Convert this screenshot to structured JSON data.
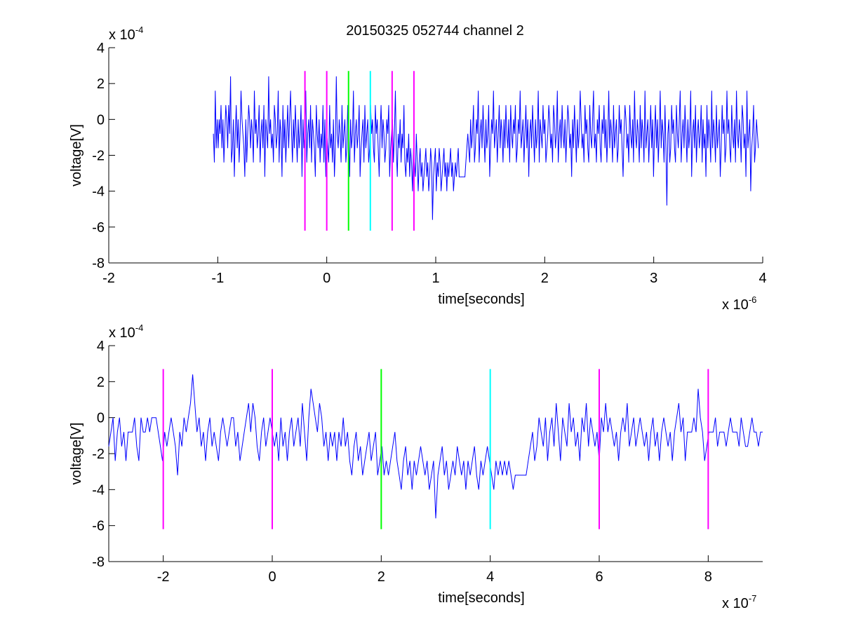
{
  "title": "20150325 052744 channel 2",
  "colors": {
    "signal": "#0000ff",
    "magenta": "#ff00ff",
    "green": "#00ff00",
    "cyan": "#00ffff",
    "axes": "#000000",
    "background": "#ffffff"
  },
  "chart_data": [
    {
      "type": "line",
      "name": "top",
      "xlabel": "time[seconds]",
      "ylabel": "voltage[V]",
      "x_multiplier": {
        "text": "x 10",
        "exp": "-6"
      },
      "y_multiplier": {
        "text": "x 10",
        "exp": "-4"
      },
      "xlim": [
        -2,
        4
      ],
      "ylim": [
        -8,
        4
      ],
      "xticks": [
        -2,
        -1,
        0,
        1,
        2,
        3,
        4
      ],
      "xtick_labels": [
        "-2",
        "-1",
        "0",
        "1",
        "2",
        "3",
        "4"
      ],
      "yticks": [
        -8,
        -6,
        -4,
        -2,
        0,
        2,
        4
      ],
      "ytick_labels": [
        "-8",
        "-6",
        "-4",
        "-2",
        "0",
        "2",
        "4"
      ],
      "grid": false,
      "signal": {
        "x_start": -1.04,
        "x_end": 3.96,
        "values": [
          -0.8,
          -2.4,
          1.6,
          -1.6,
          0,
          -1.6,
          0,
          -0.8,
          0.8,
          -1.6,
          0,
          -2.4,
          -0.8,
          0.8,
          0,
          -1.6,
          0.8,
          -0.8,
          2.4,
          -2.4,
          -1.6,
          0,
          -3.2,
          -0.8,
          0.8,
          -1.6,
          0,
          -2.4,
          -0.8,
          1.6,
          0,
          -0.8,
          -1.6,
          -3.2,
          0,
          -2.4,
          -0.8,
          0.8,
          0,
          -1.6,
          0,
          -0.8,
          -2.4,
          1.6,
          -0.8,
          0,
          -1.6,
          -0.8,
          0.8,
          -2.4,
          -0.8,
          0,
          -1.6,
          0.8,
          -3.2,
          0,
          -0.8,
          -1.6,
          2.4,
          -0.8,
          0,
          -1.6,
          -0.8,
          -2.4,
          0.8,
          0,
          -1.6,
          -0.8,
          1.6,
          -2.4,
          0,
          -0.8,
          -3.2,
          0.8,
          -1.6,
          0,
          -2.4,
          -0.8,
          0.8,
          -1.6,
          0,
          1.6,
          -0.8,
          -2.4,
          0,
          -1.6,
          0.8,
          -0.8,
          -2.4,
          0,
          -1.6,
          -0.8,
          0.8,
          -3.2,
          0,
          -1.6,
          -0.8,
          1.6,
          -2.4,
          -0.8,
          0,
          -1.6,
          0.8,
          -2.4,
          0,
          -0.8,
          -1.6,
          -3.2,
          0.8,
          -0.8,
          -1.6,
          0,
          -2.4,
          -0.8,
          -1.6,
          0.8,
          -2.4,
          0,
          -3.2,
          -0.8,
          -1.6,
          -2.4,
          0.8,
          -1.6,
          -0.8,
          -2.4,
          0,
          -3.2,
          -1.6,
          2.4,
          -0.8,
          -1.6,
          0,
          -0.8,
          -2.4,
          0.8,
          -1.6,
          -0.8,
          0,
          -2.4,
          -1.6,
          0.8,
          -0.8,
          -3.2,
          0,
          -1.6,
          -0.8,
          1.6,
          -2.4,
          -0.8,
          0,
          -1.6,
          -0.8,
          0.8,
          -3.2,
          -1.6,
          -0.8,
          0,
          -2.4,
          0.8,
          -1.6,
          -0.8,
          0,
          -2.4,
          -1.6,
          0.8,
          -0.8,
          0,
          -1.6,
          -2.4,
          0.8,
          -0.8,
          0,
          -1.6,
          -3.2,
          -0.8,
          0.8,
          -1.6,
          0,
          -0.8,
          -2.4,
          -1.6,
          0,
          -0.8,
          0.8,
          -3.2,
          -1.6,
          -0.8,
          0,
          -2.4,
          -0.8,
          1.6,
          -1.6,
          -3.2,
          -0.8,
          -1.6,
          0,
          -2.4,
          -0.8,
          -1.6,
          0.8,
          -2.4,
          -3.2,
          -1.6,
          -2.4,
          -0.8,
          -3.2,
          -1.6,
          -2.4,
          -4.0,
          -1.6,
          -2.4,
          -3.2,
          -0.8,
          -2.4,
          -4.0,
          -2.4,
          -1.6,
          -3.2,
          -2.4,
          -4.0,
          -3.2,
          -2.4,
          -1.6,
          -3.2,
          -2.4,
          -4.0,
          -3.2,
          -1.6,
          -2.4,
          -5.6,
          -3.2,
          -2.4,
          -1.6,
          -4.0,
          -2.4,
          -3.2,
          -1.6,
          -2.4,
          -4.0,
          -3.2,
          -2.4,
          -1.6,
          -3.2,
          -2.4,
          -4.0,
          -2.4,
          -3.2,
          -2.4,
          -1.6,
          -3.2,
          -2.4,
          -4.0,
          -3.2,
          -2.4,
          -3.2,
          -2.4,
          -1.6,
          -3.2,
          -3.2,
          -3.2,
          -3.2,
          -3.2,
          -3.2,
          -3.2,
          -2.4,
          -1.6,
          -0.8,
          -1.6,
          -2.4,
          0,
          -1.6,
          -0.8,
          0.8,
          -2.4,
          -1.6,
          0,
          -0.8,
          1.6,
          -2.4,
          -0.8,
          0,
          -1.6,
          0.8,
          -0.8,
          -2.4,
          0,
          -1.6,
          -0.8,
          0.8,
          -3.2,
          -1.6,
          0,
          -0.8,
          1.6,
          -1.6,
          -0.8,
          0,
          -2.4,
          -0.8,
          0.8,
          -1.6,
          0,
          -0.8,
          -2.4,
          0,
          -1.6,
          0.8,
          -0.8,
          -1.6,
          0,
          -2.4,
          0.8,
          -0.8,
          -1.6,
          0,
          -0.8,
          0.8,
          -2.4,
          -1.6,
          0,
          -0.8,
          1.6,
          -1.6,
          -0.8,
          0,
          -2.4,
          -0.8,
          0.8,
          -1.6,
          0,
          -3.2,
          -0.8,
          0,
          -1.6,
          0.8,
          -0.8,
          -2.4,
          0,
          -1.6,
          -0.8,
          1.6,
          -2.4,
          0,
          -0.8,
          -1.6,
          0.8,
          -0.8,
          0,
          -2.4,
          -1.6,
          -0.8,
          0.8,
          0,
          -1.6,
          -0.8,
          -2.4,
          0.8,
          0,
          -1.6,
          -0.8,
          1.6,
          -2.4,
          -0.8,
          0,
          -1.6,
          0.8,
          -0.8,
          -1.6,
          0,
          -2.4,
          -0.8,
          0.8,
          0,
          -1.6,
          -0.8,
          -3.2,
          0,
          -1.6,
          0.8,
          -0.8,
          -2.4,
          0,
          -1.6,
          -0.8,
          1.6,
          0,
          -1.6,
          -0.8,
          -2.4,
          0.8,
          -0.8,
          0,
          -1.6,
          -2.4,
          0.8,
          -0.8,
          -1.6,
          0,
          1.6,
          -1.6,
          -0.8,
          -2.4,
          0,
          -0.8,
          0.8,
          -1.6,
          -2.4,
          0,
          -0.8,
          0.8,
          -1.6,
          0,
          -2.4,
          -0.8,
          1.6,
          -1.6,
          0,
          -0.8,
          -2.4,
          0.8,
          -1.6,
          -0.8,
          0,
          -2.4,
          -1.6,
          0.8,
          -0.8,
          0,
          -1.6,
          -3.2,
          -0.8,
          0.8,
          0,
          -1.6,
          -0.8,
          -2.4,
          0.8,
          -0.8,
          -1.6,
          0,
          -2.4,
          1.6,
          -0.8,
          -1.6,
          0,
          -0.8,
          -2.4,
          0.8,
          -1.6,
          0,
          -0.8,
          -2.4,
          1.6,
          -1.6,
          -0.8,
          0,
          -2.4,
          -0.8,
          0.8,
          -1.6,
          0,
          -3.2,
          -0.8,
          0.8,
          -1.6,
          0,
          -2.4,
          -0.8,
          1.6,
          -1.6,
          0,
          -0.8,
          -2.4,
          0.8,
          -1.6,
          -4.8,
          -0.8,
          0,
          -2.4,
          -1.6,
          0.8,
          -0.8,
          0,
          -1.6,
          -2.4,
          0.8,
          -0.8,
          -1.6,
          0,
          1.6,
          -2.4,
          -0.8,
          0,
          -1.6,
          0.8,
          -0.8,
          -2.4,
          0,
          -1.6,
          -0.8,
          1.6,
          -3.2,
          -0.8,
          0,
          -1.6,
          0.8,
          -2.4,
          -0.8,
          0,
          -1.6,
          -0.8,
          0.8,
          -2.4,
          0,
          -1.6,
          -0.8,
          -3.2,
          0.8,
          -1.6,
          0,
          -0.8,
          -2.4,
          1.6,
          -1.6,
          0,
          -0.8,
          -2.4,
          0.8,
          -1.6,
          -0.8,
          0,
          -3.2,
          -1.6,
          0.8,
          -0.8,
          0,
          -2.4,
          -1.6,
          1.6,
          -0.8,
          0,
          -1.6,
          -2.4,
          0.8,
          -0.8,
          -1.6,
          0,
          -2.4,
          1.6,
          -0.8,
          -1.6,
          0,
          -0.8,
          -2.4,
          0.8,
          0,
          -1.6,
          -0.8,
          -3.2,
          1.6,
          -1.6,
          -0.8,
          0,
          -4.0,
          -1.6,
          -0.8,
          0.8,
          -2.4,
          -1.6,
          0,
          -0.8,
          -1.6
        ]
      },
      "markers": [
        {
          "x": -0.2,
          "color": "magenta"
        },
        {
          "x": 0.0,
          "color": "magenta"
        },
        {
          "x": 0.2,
          "color": "green"
        },
        {
          "x": 0.4,
          "color": "cyan"
        },
        {
          "x": 0.6,
          "color": "magenta"
        },
        {
          "x": 0.8,
          "color": "magenta"
        }
      ],
      "marker_y_range": [
        -6.2,
        2.7
      ]
    },
    {
      "type": "line",
      "name": "bottom",
      "xlabel": "time[seconds]",
      "ylabel": "voltage[V]",
      "x_multiplier": {
        "text": "x 10",
        "exp": "-7"
      },
      "y_multiplier": {
        "text": "x 10",
        "exp": "-4"
      },
      "xlim": [
        -3,
        9
      ],
      "ylim": [
        -8,
        4
      ],
      "xticks": [
        -2,
        0,
        2,
        4,
        6,
        8
      ],
      "xtick_labels": [
        "-2",
        "0",
        "2",
        "4",
        "6",
        "8"
      ],
      "yticks": [
        -8,
        -6,
        -4,
        -2,
        0,
        2,
        4
      ],
      "ytick_labels": [
        "-8",
        "-6",
        "-4",
        "-2",
        "0",
        "2",
        "4"
      ],
      "grid": false,
      "signal": {
        "x_start": -3.0,
        "x_end": 9.0,
        "values": [
          -1.6,
          -0.8,
          0,
          -2.4,
          -0.8,
          0,
          -1.6,
          -0.8,
          -2.4,
          -0.8,
          -0.8,
          -0.8,
          0,
          -1.6,
          -2.4,
          0,
          -0.8,
          -0.8,
          0,
          -0.8,
          0,
          0,
          0,
          -0.8,
          -1.6,
          -2.4,
          -0.8,
          -1.6,
          -0.8,
          0,
          -0.8,
          -1.6,
          -3.2,
          -0.8,
          -1.6,
          0,
          -0.8,
          0,
          0.8,
          2.4,
          0.8,
          -0.8,
          0,
          -1.6,
          -0.8,
          -2.4,
          -0.8,
          0,
          -1.6,
          -0.8,
          -1.6,
          -2.4,
          -0.8,
          0,
          -0.8,
          -1.6,
          -0.8,
          0,
          0,
          -1.6,
          -0.8,
          -2.4,
          -1.6,
          -0.8,
          0,
          0.8,
          -0.8,
          0.8,
          0,
          -1.6,
          -2.4,
          -0.8,
          0,
          -1.6,
          -0.8,
          0,
          -0.8,
          -1.6,
          -0.8,
          -2.4,
          0,
          -1.6,
          -0.8,
          -2.4,
          -0.8,
          0,
          -1.6,
          -0.8,
          0,
          -1.6,
          0.8,
          -0.8,
          -2.4,
          0,
          1.6,
          0.8,
          0,
          -0.8,
          0.8,
          0,
          -1.6,
          -0.8,
          -2.4,
          -0.8,
          -1.6,
          -0.8,
          -2.4,
          -0.8,
          -1.6,
          0,
          -1.6,
          -0.8,
          -2.4,
          -3.2,
          -1.6,
          -0.8,
          -2.4,
          -1.6,
          -3.2,
          -2.4,
          -1.6,
          -0.8,
          -2.4,
          -1.6,
          -0.8,
          -3.2,
          -2.4,
          -1.6,
          -3.2,
          -2.4,
          -3.2,
          -2.4,
          -1.6,
          -0.8,
          -2.4,
          -3.2,
          -4.0,
          -2.4,
          -1.6,
          -3.2,
          -2.4,
          -4.0,
          -2.4,
          -3.2,
          -2.4,
          -1.6,
          -2.4,
          -3.2,
          -2.4,
          -4.0,
          -3.2,
          -2.4,
          -5.6,
          -3.2,
          -2.4,
          -1.6,
          -3.2,
          -2.4,
          -4.0,
          -3.2,
          -2.4,
          -3.2,
          -1.6,
          -2.4,
          -3.2,
          -2.4,
          -4.0,
          -2.4,
          -3.2,
          -2.4,
          -1.6,
          -3.2,
          -4.0,
          -2.4,
          -3.2,
          -2.4,
          -1.6,
          -2.4,
          -3.2,
          -4.0,
          -2.4,
          -3.2,
          -2.4,
          -3.2,
          -2.4,
          -3.2,
          -2.4,
          -3.2,
          -4.0,
          -3.2,
          -3.2,
          -3.2,
          -3.2,
          -3.2,
          -3.2,
          -2.4,
          -1.6,
          -0.8,
          -2.4,
          -1.6,
          0,
          -0.8,
          -1.6,
          0,
          -2.4,
          -0.8,
          0,
          -1.6,
          0.8,
          -0.8,
          -2.4,
          0,
          -0.8,
          -1.6,
          0.8,
          -0.8,
          0,
          -1.6,
          -0.8,
          -2.4,
          0,
          -0.8,
          0.8,
          -1.6,
          0,
          -0.8,
          -1.6,
          -0.8,
          -2.4,
          0,
          -0.8,
          0.8,
          -0.8,
          0,
          -0.8,
          -1.6,
          -0.8,
          -2.4,
          -0.8,
          0,
          -0.8,
          0.8,
          -1.6,
          -0.8,
          0,
          -1.6,
          -0.8,
          0,
          -0.8,
          -1.6,
          -0.8,
          -2.4,
          -0.8,
          0,
          -1.6,
          -0.8,
          -2.4,
          -0.8,
          0,
          -0.8,
          -1.6,
          -0.8,
          -2.4,
          -0.8,
          0,
          0.8,
          -0.8,
          0,
          -2.4,
          -0.8,
          -0.8,
          -0.8,
          0,
          -0.8,
          1.6,
          0,
          -0.8,
          -2.4,
          -1.6,
          -0.8,
          -0.8,
          -0.8,
          0,
          -1.6,
          -0.8,
          -0.8,
          -0.8,
          -1.6,
          -0.8,
          0,
          -0.8,
          -0.8,
          -0.8,
          -1.6,
          0,
          -0.8,
          -1.6,
          -1.6,
          -0.8,
          0,
          -0.8,
          -0.8,
          -1.6,
          -0.8,
          -0.8
        ]
      },
      "markers": [
        {
          "x": -2,
          "color": "magenta"
        },
        {
          "x": 0,
          "color": "magenta"
        },
        {
          "x": 2,
          "color": "green"
        },
        {
          "x": 4,
          "color": "cyan"
        },
        {
          "x": 6,
          "color": "magenta"
        },
        {
          "x": 8,
          "color": "magenta"
        }
      ],
      "marker_y_range": [
        -6.2,
        2.7
      ]
    }
  ]
}
